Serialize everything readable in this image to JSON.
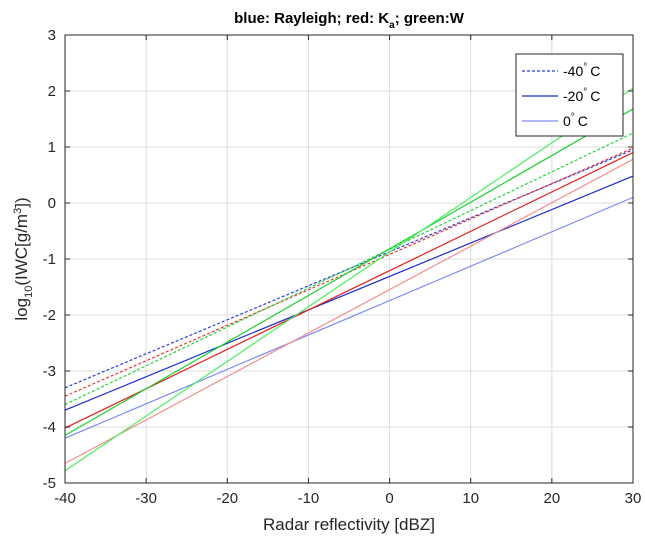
{
  "chart_data": {
    "type": "line",
    "title": {
      "part1": "blue: Rayleigh; red: K",
      "part1_sub": "a",
      "part2": "; green:W"
    },
    "xlabel": "Radar reflectivity [dBZ]",
    "ylabel": {
      "prefix": "log",
      "prefix_sub": "10",
      "mid": "(IWC[g/m",
      "sup": "3",
      "suffix": "])"
    },
    "xlim": [
      -40,
      30
    ],
    "ylim": [
      -5,
      3
    ],
    "xticks": [
      "-40",
      "-30",
      "-20",
      "-10",
      "0",
      "10",
      "20",
      "30"
    ],
    "yticks": [
      "-5",
      "-4",
      "-3",
      "-2",
      "-1",
      "0",
      "1",
      "2",
      "3"
    ],
    "grid": true,
    "legend": {
      "placement": "top-right",
      "entries": [
        {
          "label": "-40",
          "degree": "°",
          "unit": "C",
          "color": "#2b3fd8",
          "style": "dotted"
        },
        {
          "label": "-20",
          "degree": "°",
          "unit": "C",
          "color": "#1f2fcf",
          "style": "solid"
        },
        {
          "label": "0",
          "degree": "°",
          "unit": "C",
          "color": "#7f8cf0",
          "style": "solid"
        }
      ]
    },
    "series": [
      {
        "x": [
          -40,
          30
        ],
        "y": [
          -3.3,
          0.95
        ],
        "color": "#2b3fd8",
        "style": "dotted"
      },
      {
        "x": [
          -40,
          30
        ],
        "y": [
          -3.7,
          0.48
        ],
        "color": "#1f2fcf",
        "style": "solid"
      },
      {
        "x": [
          -40,
          30
        ],
        "y": [
          -4.2,
          0.1
        ],
        "color": "#7f8cf0",
        "style": "solid"
      },
      {
        "x": [
          -40,
          30
        ],
        "y": [
          -3.45,
          0.98
        ],
        "color": "#e83a3a",
        "style": "dotted"
      },
      {
        "x": [
          -40,
          30
        ],
        "y": [
          -4.02,
          0.9
        ],
        "color": "#e02020",
        "style": "solid"
      },
      {
        "x": [
          -40,
          30
        ],
        "y": [
          -4.65,
          0.78
        ],
        "color": "#f3908e",
        "style": "solid"
      },
      {
        "x": [
          -40,
          30
        ],
        "y": [
          -3.6,
          1.25
        ],
        "color": "#22d63a",
        "style": "dotted"
      },
      {
        "x": [
          -40,
          30
        ],
        "y": [
          -4.15,
          1.68
        ],
        "color": "#19d12e",
        "style": "solid"
      },
      {
        "x": [
          -40,
          30
        ],
        "y": [
          -4.78,
          2.05
        ],
        "color": "#4aee5e",
        "style": "solid"
      }
    ]
  }
}
